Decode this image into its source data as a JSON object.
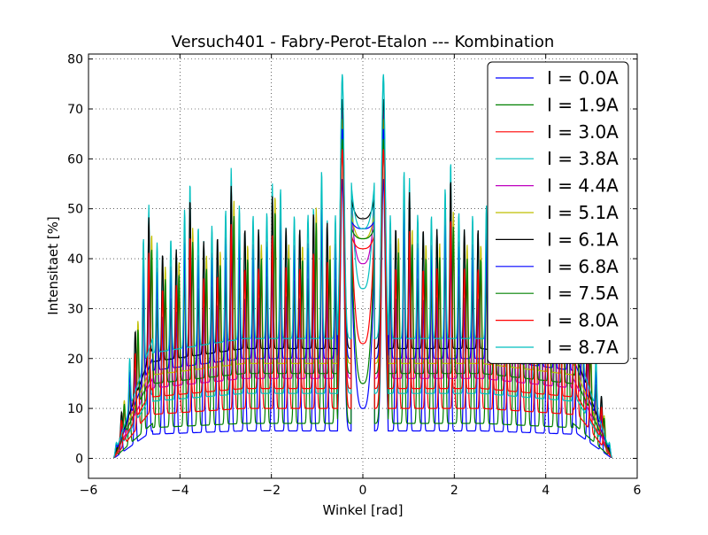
{
  "chart_data": {
    "type": "line",
    "title": "Versuch401 - Fabry-Perot-Etalon ---  Kombination",
    "xlabel": "Winkel [rad]",
    "ylabel": "Intensitaet [%]",
    "xlim": [
      -6,
      6
    ],
    "ylim": [
      -4,
      81
    ],
    "xticks": [
      -6,
      -4,
      -2,
      0,
      2,
      4,
      6
    ],
    "yticks": [
      0,
      10,
      20,
      30,
      40,
      50,
      60,
      70,
      80
    ],
    "xtick_labels": [
      "−6",
      "−4",
      "−2",
      "0",
      "2",
      "4",
      "6"
    ],
    "ytick_labels": [
      "0",
      "10",
      "20",
      "30",
      "40",
      "50",
      "60",
      "70",
      "80"
    ],
    "grid": true,
    "legend_position": "top-right",
    "x_range": [
      -5.45,
      5.45
    ],
    "series": [
      {
        "name": "I = 0.0A",
        "color": "#0000ff",
        "peak": 56,
        "floor": 5.5,
        "center_dip": 10
      },
      {
        "name": "I = 1.9A",
        "color": "#008000",
        "peak": 62,
        "floor": 7,
        "center_dip": 15
      },
      {
        "name": "I = 3.0A",
        "color": "#ff0000",
        "peak": 65,
        "floor": 10,
        "center_dip": 23
      },
      {
        "name": "I = 3.8A",
        "color": "#00bfbf",
        "peak": 77,
        "floor": 13,
        "center_dip": 34
      },
      {
        "name": "I = 4.4A",
        "color": "#bf00bf",
        "peak": 70,
        "floor": 16,
        "center_dip": 39
      },
      {
        "name": "I = 5.1A",
        "color": "#bfbf00",
        "peak": 68,
        "floor": 19,
        "center_dip": 44
      },
      {
        "name": "I = 6.1A",
        "color": "#000000",
        "peak": 72,
        "floor": 22,
        "center_dip": 48
      },
      {
        "name": "I = 6.8A",
        "color": "#0000ff",
        "peak": 66,
        "floor": 20,
        "center_dip": 46
      },
      {
        "name": "I = 7.5A",
        "color": "#008000",
        "peak": 64,
        "floor": 17,
        "center_dip": 44
      },
      {
        "name": "I = 8.0A",
        "color": "#ff0000",
        "peak": 62,
        "floor": 14,
        "center_dip": 42
      },
      {
        "name": "I = 8.7A",
        "color": "#00bfbf",
        "peak": 76,
        "floor": 24,
        "center_dip": 46
      }
    ]
  }
}
